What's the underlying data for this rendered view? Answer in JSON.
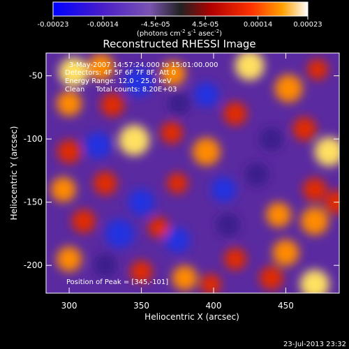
{
  "chart_data": {
    "type": "heatmap",
    "title": "Reconstructed RHESSI Image",
    "xlabel": "Heliocentric X (arcsec)",
    "ylabel": "Heliocentric Y (arcsec)",
    "xlim": [
      284,
      487
    ],
    "ylim": [
      -222,
      -32
    ],
    "x_ticks": [
      300,
      350,
      400,
      450
    ],
    "y_ticks": [
      -50,
      -100,
      -150,
      -200
    ],
    "colorbar": {
      "ticks": [
        "-0.00023",
        "-0.00014",
        "-4.5e-05",
        "4.5e-05",
        "0.00014",
        "0.00023"
      ],
      "range": [
        -0.00023,
        0.00023
      ],
      "units_prefix": "(photons cm",
      "units_exp1": "-2",
      "units_mid": " s",
      "units_exp2": "-1",
      "units_mid2": " asec",
      "units_exp3": "-2",
      "units_suffix": ")"
    },
    "annotations": [
      "3-May-2007 14:57:24.000 to 15:01:00.000",
      "Detectors: 4F 5F 6F 7F 8F, Att 0",
      "Energy Range: 12.0 - 25.0 keV",
      "Clean     Total counts: 8.20E+03"
    ],
    "peak_label": "Position of Peak = [345,-101]",
    "peak": [
      345,
      -101
    ],
    "map_blobs": [
      {
        "x": 303,
        "y": -47,
        "v": 0.9
      },
      {
        "x": 322,
        "y": -43,
        "v": 0.7
      },
      {
        "x": 348,
        "y": -55,
        "v": -0.9
      },
      {
        "x": 372,
        "y": -48,
        "v": 0.6
      },
      {
        "x": 395,
        "y": -65,
        "v": -0.6
      },
      {
        "x": 425,
        "y": -42,
        "v": 0.9
      },
      {
        "x": 452,
        "y": -60,
        "v": 0.8
      },
      {
        "x": 472,
        "y": -45,
        "v": 0.3
      },
      {
        "x": 330,
        "y": -73,
        "v": 0.5
      },
      {
        "x": 300,
        "y": -72,
        "v": 0.6
      },
      {
        "x": 376,
        "y": -72,
        "v": -0.4
      },
      {
        "x": 415,
        "y": -80,
        "v": 0.5
      },
      {
        "x": 345,
        "y": -101,
        "v": 1.0
      },
      {
        "x": 320,
        "y": -105,
        "v": -0.7
      },
      {
        "x": 371,
        "y": -95,
        "v": 0.4
      },
      {
        "x": 395,
        "y": -110,
        "v": 0.8
      },
      {
        "x": 440,
        "y": -100,
        "v": -0.5
      },
      {
        "x": 463,
        "y": -92,
        "v": 0.5
      },
      {
        "x": 480,
        "y": -110,
        "v": 0.9
      },
      {
        "x": 300,
        "y": -110,
        "v": 0.5
      },
      {
        "x": 296,
        "y": -140,
        "v": 0.6
      },
      {
        "x": 325,
        "y": -135,
        "v": 0.5
      },
      {
        "x": 350,
        "y": -150,
        "v": -0.7
      },
      {
        "x": 375,
        "y": -135,
        "v": 0.3
      },
      {
        "x": 407,
        "y": -140,
        "v": -0.6
      },
      {
        "x": 430,
        "y": -128,
        "v": -0.5
      },
      {
        "x": 470,
        "y": -140,
        "v": 0.5
      },
      {
        "x": 310,
        "y": -165,
        "v": 0.5
      },
      {
        "x": 335,
        "y": -175,
        "v": -0.9
      },
      {
        "x": 362,
        "y": -170,
        "v": 0.3
      },
      {
        "x": 375,
        "y": -180,
        "v": -0.6
      },
      {
        "x": 410,
        "y": -168,
        "v": -0.5
      },
      {
        "x": 445,
        "y": -160,
        "v": 0.6
      },
      {
        "x": 470,
        "y": -165,
        "v": 0.8
      },
      {
        "x": 485,
        "y": -150,
        "v": 0.5
      },
      {
        "x": 300,
        "y": -195,
        "v": 0.6
      },
      {
        "x": 325,
        "y": -200,
        "v": -0.5
      },
      {
        "x": 350,
        "y": -205,
        "v": 0.4
      },
      {
        "x": 380,
        "y": -210,
        "v": 0.6
      },
      {
        "x": 415,
        "y": -195,
        "v": 0.4
      },
      {
        "x": 450,
        "y": -190,
        "v": 0.7
      },
      {
        "x": 470,
        "y": -215,
        "v": 0.9
      },
      {
        "x": 440,
        "y": -210,
        "v": 0.5
      },
      {
        "x": 398,
        "y": -215,
        "v": 0.3
      }
    ]
  },
  "footer": {
    "timestamp": "23-Jul-2013 23:32"
  }
}
